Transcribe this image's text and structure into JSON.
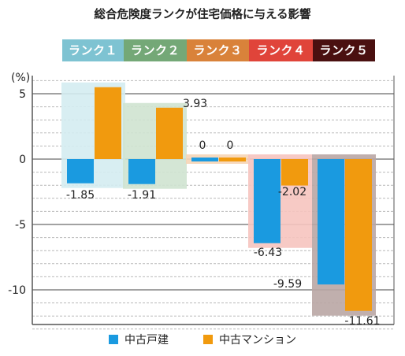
{
  "chart_data": {
    "type": "bar",
    "title": "総合危険度ランクが住宅価格に与える影響",
    "unit_label": "(%)",
    "categories": [
      "ランク１",
      "ランク２",
      "ランク３",
      "ランク４",
      "ランク５"
    ],
    "category_colors": [
      "#7ec3d2",
      "#74a877",
      "#d9823a",
      "#e0443a",
      "#4a1010"
    ],
    "band_colors": [
      "#d4ecf1",
      "#cfe3d0",
      "#f6d5b6",
      "#f6c4bf",
      "#b9a6a4"
    ],
    "series": [
      {
        "name": "中古戸建",
        "color": "#1a9ae0",
        "values": [
          -1.85,
          -1.91,
          0,
          -6.43,
          -9.59
        ]
      },
      {
        "name": "中古マンション",
        "color": "#f19a0e",
        "values": [
          5.5,
          3.93,
          0,
          -2.02,
          -11.61
        ]
      }
    ],
    "data_labels": [
      [
        "-1.85",
        "-1.91",
        "0",
        "-6.43",
        "-9.59"
      ],
      [
        "",
        "3.93",
        "0",
        "-2.02",
        "-11.61"
      ]
    ],
    "ylim": [
      -13,
      6
    ],
    "yticks": [
      5,
      0,
      -5,
      -10
    ],
    "ytick_labels": [
      "5",
      "0",
      "-5",
      "-10"
    ],
    "grid": true,
    "legend_position": "bottom"
  }
}
